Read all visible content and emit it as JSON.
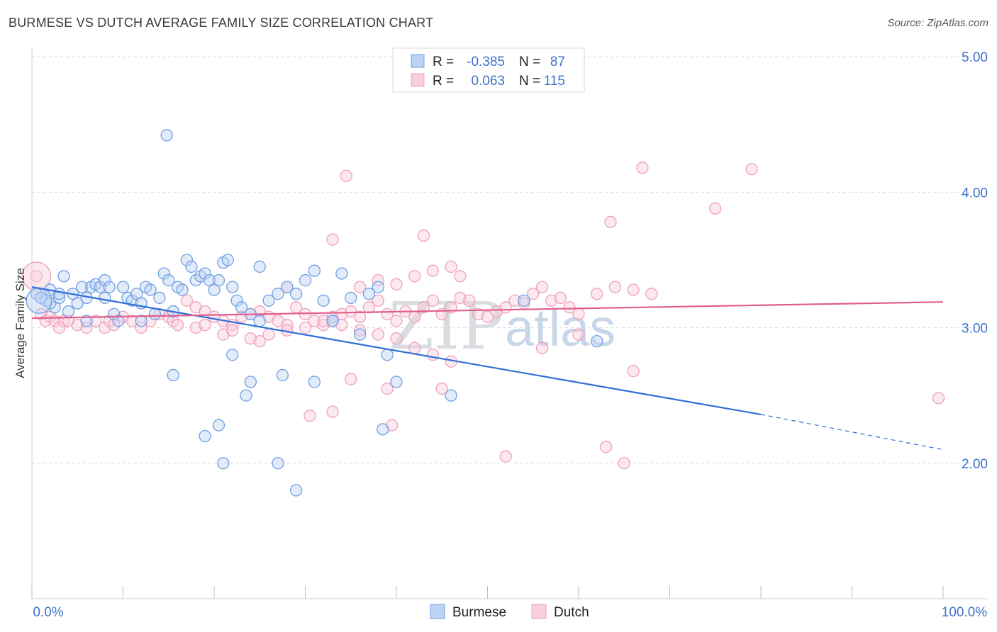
{
  "title": "BURMESE VS DUTCH AVERAGE FAMILY SIZE CORRELATION CHART",
  "source": "Source: ZipAtlas.com",
  "watermark": {
    "zip": "ZIP",
    "atlas": "atlas"
  },
  "legend": {
    "r_label": "R =",
    "n_label": "N =",
    "rows": [
      {
        "series": "Burmese",
        "r": "-0.385",
        "n": "87",
        "color": "#6f9fe3"
      },
      {
        "series": "Dutch",
        "r": "0.063",
        "n": "115",
        "color": "#f0a0bc"
      }
    ]
  },
  "chart_data": {
    "type": "scatter",
    "title": "BURMESE VS DUTCH AVERAGE FAMILY SIZE CORRELATION CHART",
    "xlabel": "",
    "ylabel": "Average Family Size",
    "xlim": [
      0,
      100
    ],
    "ylim": [
      1.0,
      5.0
    ],
    "x_tick_labels": [
      "0.0%",
      "100.0%"
    ],
    "y_ticks": [
      2.0,
      3.0,
      4.0,
      5.0
    ],
    "y_tick_labels": [
      "2.00",
      "3.00",
      "4.00",
      "5.00"
    ],
    "grid": true,
    "legend_position": "bottom",
    "series": [
      {
        "name": "Burmese",
        "color": "#6f9fe3",
        "line_color": "#2f6fd6",
        "trend": {
          "x0": 0,
          "y0": 3.3,
          "x1": 80,
          "y1": 2.36,
          "dashed_to_x": 100,
          "dashed_to_y": 2.1
        },
        "points": [
          [
            0.5,
            3.25
          ],
          [
            1,
            3.22
          ],
          [
            1.5,
            3.2
          ],
          [
            2,
            3.28
          ],
          [
            2.5,
            3.15
          ],
          [
            3,
            3.22
          ],
          [
            3.5,
            3.38
          ],
          [
            4,
            3.12
          ],
          [
            4.5,
            3.25
          ],
          [
            5,
            3.18
          ],
          [
            5.5,
            3.3
          ],
          [
            6,
            3.22
          ],
          [
            6.5,
            3.3
          ],
          [
            7,
            3.32
          ],
          [
            7.5,
            3.3
          ],
          [
            8,
            3.35
          ],
          [
            8.5,
            3.3
          ],
          [
            9,
            3.1
          ],
          [
            9.5,
            3.05
          ],
          [
            10,
            3.3
          ],
          [
            10.5,
            3.22
          ],
          [
            11,
            3.2
          ],
          [
            11.5,
            3.25
          ],
          [
            12,
            3.18
          ],
          [
            12.5,
            3.3
          ],
          [
            13,
            3.28
          ],
          [
            13.5,
            3.1
          ],
          [
            14,
            3.22
          ],
          [
            14.5,
            3.4
          ],
          [
            15,
            3.35
          ],
          [
            15.5,
            3.12
          ],
          [
            16,
            3.3
          ],
          [
            16.5,
            3.28
          ],
          [
            17,
            3.5
          ],
          [
            17.5,
            3.45
          ],
          [
            18,
            3.35
          ],
          [
            18.5,
            3.38
          ],
          [
            19,
            3.4
          ],
          [
            19.5,
            3.35
          ],
          [
            20,
            3.28
          ],
          [
            20.5,
            3.35
          ],
          [
            21,
            3.48
          ],
          [
            21.5,
            3.5
          ],
          [
            22,
            3.3
          ],
          [
            22.5,
            3.2
          ],
          [
            23,
            3.15
          ],
          [
            24,
            3.1
          ],
          [
            25,
            3.45
          ],
          [
            26,
            3.2
          ],
          [
            27,
            3.25
          ],
          [
            28,
            3.3
          ],
          [
            29,
            3.25
          ],
          [
            30,
            3.35
          ],
          [
            31,
            3.42
          ],
          [
            32,
            3.2
          ],
          [
            33,
            3.05
          ],
          [
            34,
            3.4
          ],
          [
            35,
            3.22
          ],
          [
            36,
            2.95
          ],
          [
            37,
            3.25
          ],
          [
            38,
            3.3
          ],
          [
            15.5,
            2.65
          ],
          [
            14.8,
            4.42
          ],
          [
            20.5,
            2.28
          ],
          [
            19,
            2.2
          ],
          [
            21,
            2.0
          ],
          [
            22,
            2.8
          ],
          [
            24,
            2.6
          ],
          [
            23.5,
            2.5
          ],
          [
            27,
            2.0
          ],
          [
            27.5,
            2.65
          ],
          [
            29,
            1.8
          ],
          [
            31,
            2.6
          ],
          [
            38.5,
            2.25
          ],
          [
            39,
            2.8
          ],
          [
            40,
            2.6
          ],
          [
            46,
            2.5
          ],
          [
            54,
            3.2
          ],
          [
            62,
            2.9
          ],
          [
            33,
            3.05
          ],
          [
            25,
            3.05
          ],
          [
            12,
            3.05
          ],
          [
            6,
            3.05
          ],
          [
            3,
            3.25
          ],
          [
            8,
            3.22
          ],
          [
            2,
            3.18
          ],
          [
            1,
            3.22
          ]
        ]
      },
      {
        "name": "Dutch",
        "color": "#f0a0bc",
        "line_color": "#e0608c",
        "trend": {
          "x0": 0,
          "y0": 3.07,
          "x1": 100,
          "y1": 3.19
        },
        "points": [
          [
            0.5,
            3.38
          ],
          [
            1,
            3.1
          ],
          [
            1.5,
            3.05
          ],
          [
            2,
            3.08
          ],
          [
            2.5,
            3.05
          ],
          [
            3,
            3.0
          ],
          [
            3.5,
            3.05
          ],
          [
            4,
            3.05
          ],
          [
            5,
            3.02
          ],
          [
            6,
            3.0
          ],
          [
            7,
            3.05
          ],
          [
            8,
            3.0
          ],
          [
            8.5,
            3.05
          ],
          [
            9,
            3.02
          ],
          [
            10,
            3.08
          ],
          [
            11,
            3.05
          ],
          [
            12,
            3.0
          ],
          [
            13,
            3.05
          ],
          [
            14,
            3.1
          ],
          [
            15,
            3.08
          ],
          [
            15.5,
            3.05
          ],
          [
            16,
            3.02
          ],
          [
            17,
            3.2
          ],
          [
            18,
            3.15
          ],
          [
            19,
            3.12
          ],
          [
            20,
            3.08
          ],
          [
            21,
            3.05
          ],
          [
            22,
            3.02
          ],
          [
            23,
            3.08
          ],
          [
            24,
            3.1
          ],
          [
            25,
            3.12
          ],
          [
            26,
            3.08
          ],
          [
            27,
            3.05
          ],
          [
            28,
            3.02
          ],
          [
            29,
            3.15
          ],
          [
            30,
            3.1
          ],
          [
            31,
            3.05
          ],
          [
            32,
            3.02
          ],
          [
            33,
            3.08
          ],
          [
            34,
            3.1
          ],
          [
            35,
            3.12
          ],
          [
            36,
            3.08
          ],
          [
            37,
            3.15
          ],
          [
            38,
            3.2
          ],
          [
            39,
            3.1
          ],
          [
            40,
            3.05
          ],
          [
            41,
            3.12
          ],
          [
            42,
            3.08
          ],
          [
            43,
            3.15
          ],
          [
            44,
            3.2
          ],
          [
            45,
            3.1
          ],
          [
            46,
            3.15
          ],
          [
            47,
            3.22
          ],
          [
            48,
            3.2
          ],
          [
            49,
            3.1
          ],
          [
            50,
            3.08
          ],
          [
            51,
            3.12
          ],
          [
            52,
            3.15
          ],
          [
            53,
            3.2
          ],
          [
            54,
            3.18
          ],
          [
            55,
            3.25
          ],
          [
            56,
            3.3
          ],
          [
            57,
            3.2
          ],
          [
            58,
            3.22
          ],
          [
            59,
            3.15
          ],
          [
            60,
            3.1
          ],
          [
            62,
            3.25
          ],
          [
            64,
            3.3
          ],
          [
            66,
            3.28
          ],
          [
            68,
            3.25
          ],
          [
            18,
            3.0
          ],
          [
            19,
            3.02
          ],
          [
            21,
            2.95
          ],
          [
            22,
            2.98
          ],
          [
            24,
            2.92
          ],
          [
            25,
            2.9
          ],
          [
            26,
            2.95
          ],
          [
            28,
            2.98
          ],
          [
            30,
            3.0
          ],
          [
            32,
            3.05
          ],
          [
            34,
            3.02
          ],
          [
            36,
            2.98
          ],
          [
            38,
            2.95
          ],
          [
            40,
            2.92
          ],
          [
            42,
            2.85
          ],
          [
            44,
            2.8
          ],
          [
            46,
            2.75
          ],
          [
            34.5,
            4.12
          ],
          [
            33,
            3.65
          ],
          [
            43,
            3.68
          ],
          [
            44,
            3.42
          ],
          [
            46,
            3.45
          ],
          [
            47,
            3.38
          ],
          [
            52,
            2.05
          ],
          [
            56,
            2.85
          ],
          [
            60,
            2.95
          ],
          [
            63,
            2.12
          ],
          [
            63.5,
            3.78
          ],
          [
            65,
            2.0
          ],
          [
            66,
            2.68
          ],
          [
            67,
            4.18
          ],
          [
            75,
            3.88
          ],
          [
            79,
            4.17
          ],
          [
            39,
            2.55
          ],
          [
            35,
            2.62
          ],
          [
            30.5,
            2.35
          ],
          [
            33,
            2.38
          ],
          [
            39.5,
            2.28
          ],
          [
            45,
            2.55
          ],
          [
            99.5,
            2.48
          ],
          [
            28,
            3.3
          ],
          [
            36,
            3.3
          ],
          [
            38,
            3.35
          ],
          [
            40,
            3.32
          ],
          [
            42,
            3.38
          ]
        ]
      }
    ]
  }
}
